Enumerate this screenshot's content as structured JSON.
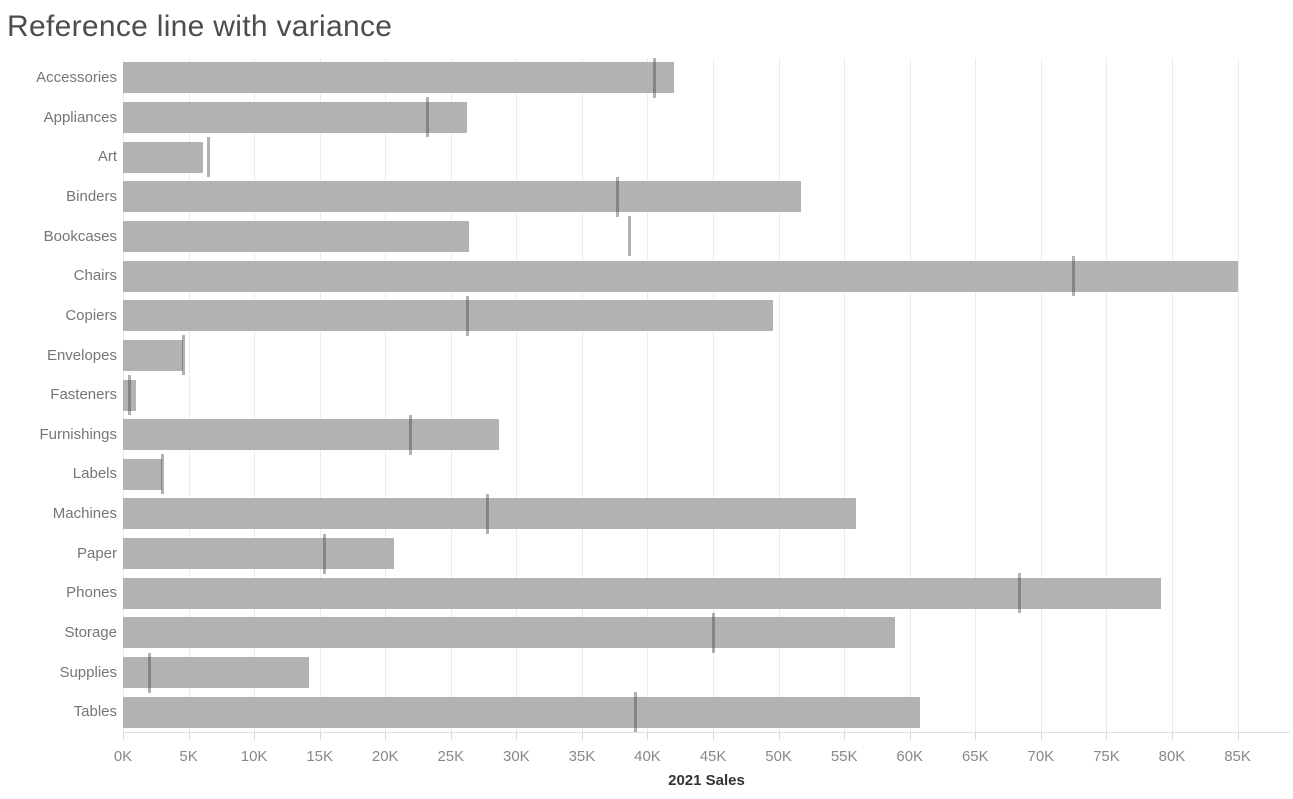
{
  "title": "Reference line with variance",
  "colors": {
    "bar": "#b2b2b2",
    "reference_line": "rgba(70,70,70,0.42)",
    "gridline": "#ebebeb",
    "title_text": "#4d4d4d",
    "category_text": "#767676",
    "axis_text": "#888888",
    "axis_title_text": "#333333"
  },
  "chart_data": {
    "type": "bar",
    "orientation": "horizontal",
    "title": "Reference line with variance",
    "xlabel": "2021 Sales",
    "ylabel": "",
    "xlim": [
      0,
      89000
    ],
    "grid": "vertical-gridlines-only",
    "legend": "none",
    "categories": [
      "Accessories",
      "Appliances",
      "Art",
      "Binders",
      "Bookcases",
      "Chairs",
      "Copiers",
      "Envelopes",
      "Fasteners",
      "Furnishings",
      "Labels",
      "Machines",
      "Paper",
      "Phones",
      "Storage",
      "Supplies",
      "Tables"
    ],
    "series": [
      {
        "name": "2021 Sales",
        "role": "bar",
        "values": [
          42000,
          26200,
          6100,
          51700,
          26400,
          85000,
          49600,
          4600,
          1000,
          28700,
          3000,
          55900,
          20700,
          79200,
          58900,
          14200,
          60800
        ]
      },
      {
        "name": "Reference line with variance",
        "role": "reference-line",
        "values": [
          40500,
          23200,
          6500,
          37700,
          38600,
          72500,
          26300,
          4600,
          500,
          21900,
          3000,
          27800,
          15400,
          68400,
          45000,
          2000,
          39100
        ]
      }
    ],
    "ticks": [
      {
        "value": 0,
        "label": "0K"
      },
      {
        "value": 5000,
        "label": "5K"
      },
      {
        "value": 10000,
        "label": "10K"
      },
      {
        "value": 15000,
        "label": "15K"
      },
      {
        "value": 20000,
        "label": "20K"
      },
      {
        "value": 25000,
        "label": "25K"
      },
      {
        "value": 30000,
        "label": "30K"
      },
      {
        "value": 35000,
        "label": "35K"
      },
      {
        "value": 40000,
        "label": "40K"
      },
      {
        "value": 45000,
        "label": "45K"
      },
      {
        "value": 50000,
        "label": "50K"
      },
      {
        "value": 55000,
        "label": "55K"
      },
      {
        "value": 60000,
        "label": "60K"
      },
      {
        "value": 65000,
        "label": "65K"
      },
      {
        "value": 70000,
        "label": "70K"
      },
      {
        "value": 75000,
        "label": "75K"
      },
      {
        "value": 80000,
        "label": "80K"
      },
      {
        "value": 85000,
        "label": "85K"
      }
    ]
  }
}
